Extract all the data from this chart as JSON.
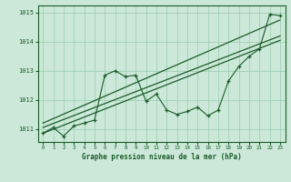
{
  "title": "Graphe pression niveau de la mer (hPa)",
  "bg_color": "#cce8d8",
  "grid_color": "#99ccb0",
  "line_color": "#1a5c2a",
  "text_color": "#1a5c2a",
  "xlim": [
    -0.5,
    23.5
  ],
  "ylim": [
    1010.55,
    1015.25
  ],
  "yticks": [
    1011,
    1012,
    1013,
    1014,
    1015
  ],
  "xticks": [
    0,
    1,
    2,
    3,
    4,
    5,
    6,
    7,
    8,
    9,
    10,
    11,
    12,
    13,
    14,
    15,
    16,
    17,
    18,
    19,
    20,
    21,
    22,
    23
  ],
  "x": [
    0,
    1,
    2,
    3,
    4,
    5,
    6,
    7,
    8,
    9,
    10,
    11,
    12,
    13,
    14,
    15,
    16,
    17,
    18,
    19,
    20,
    21,
    22,
    23
  ],
  "line1": [
    1010.85,
    1011.05,
    1010.75,
    1011.1,
    1011.2,
    1011.3,
    1012.85,
    1013.0,
    1012.8,
    1012.85,
    1011.95,
    1012.2,
    1011.65,
    1011.5,
    1011.6,
    1011.75,
    1011.45,
    1011.65,
    1012.65,
    1013.15,
    1013.5,
    1013.75,
    1014.95,
    1014.9
  ],
  "trend1_x": [
    0,
    23
  ],
  "trend1_y": [
    1010.85,
    1014.05
  ],
  "trend2_x": [
    0,
    23
  ],
  "trend2_y": [
    1011.05,
    1014.2
  ],
  "trend3_x": [
    0,
    23
  ],
  "trend3_y": [
    1011.2,
    1014.75
  ]
}
